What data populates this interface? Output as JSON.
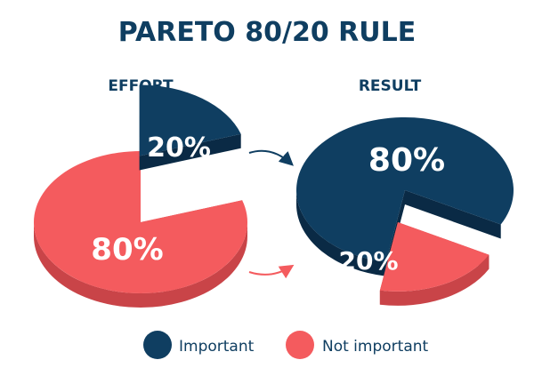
{
  "title": "PARETO 80/20 RULE",
  "colors": {
    "important": "#0f3e61",
    "important_side": "#0a2a45",
    "not_important": "#f45b5e",
    "not_important_side": "#c94448",
    "title": "#0f3e61",
    "arrow": "#0f3e61",
    "arrow_red": "#f45b5e",
    "legend_text": "#0f3e61"
  },
  "chart_data": [
    {
      "type": "pie",
      "title": "EFFORT",
      "categories": [
        "Important",
        "Not important"
      ],
      "values": [
        20,
        80
      ],
      "data_labels": [
        "20%",
        "80%"
      ],
      "exploded": "Important"
    },
    {
      "type": "pie",
      "title": "RESULT",
      "categories": [
        "Important",
        "Not important"
      ],
      "values": [
        80,
        20
      ],
      "data_labels": [
        "80%",
        "20%"
      ],
      "exploded": "Not important"
    }
  ],
  "legend": [
    {
      "label": "Important",
      "color": "#0f3e61"
    },
    {
      "label": "Not important",
      "color": "#f45b5e"
    }
  ]
}
